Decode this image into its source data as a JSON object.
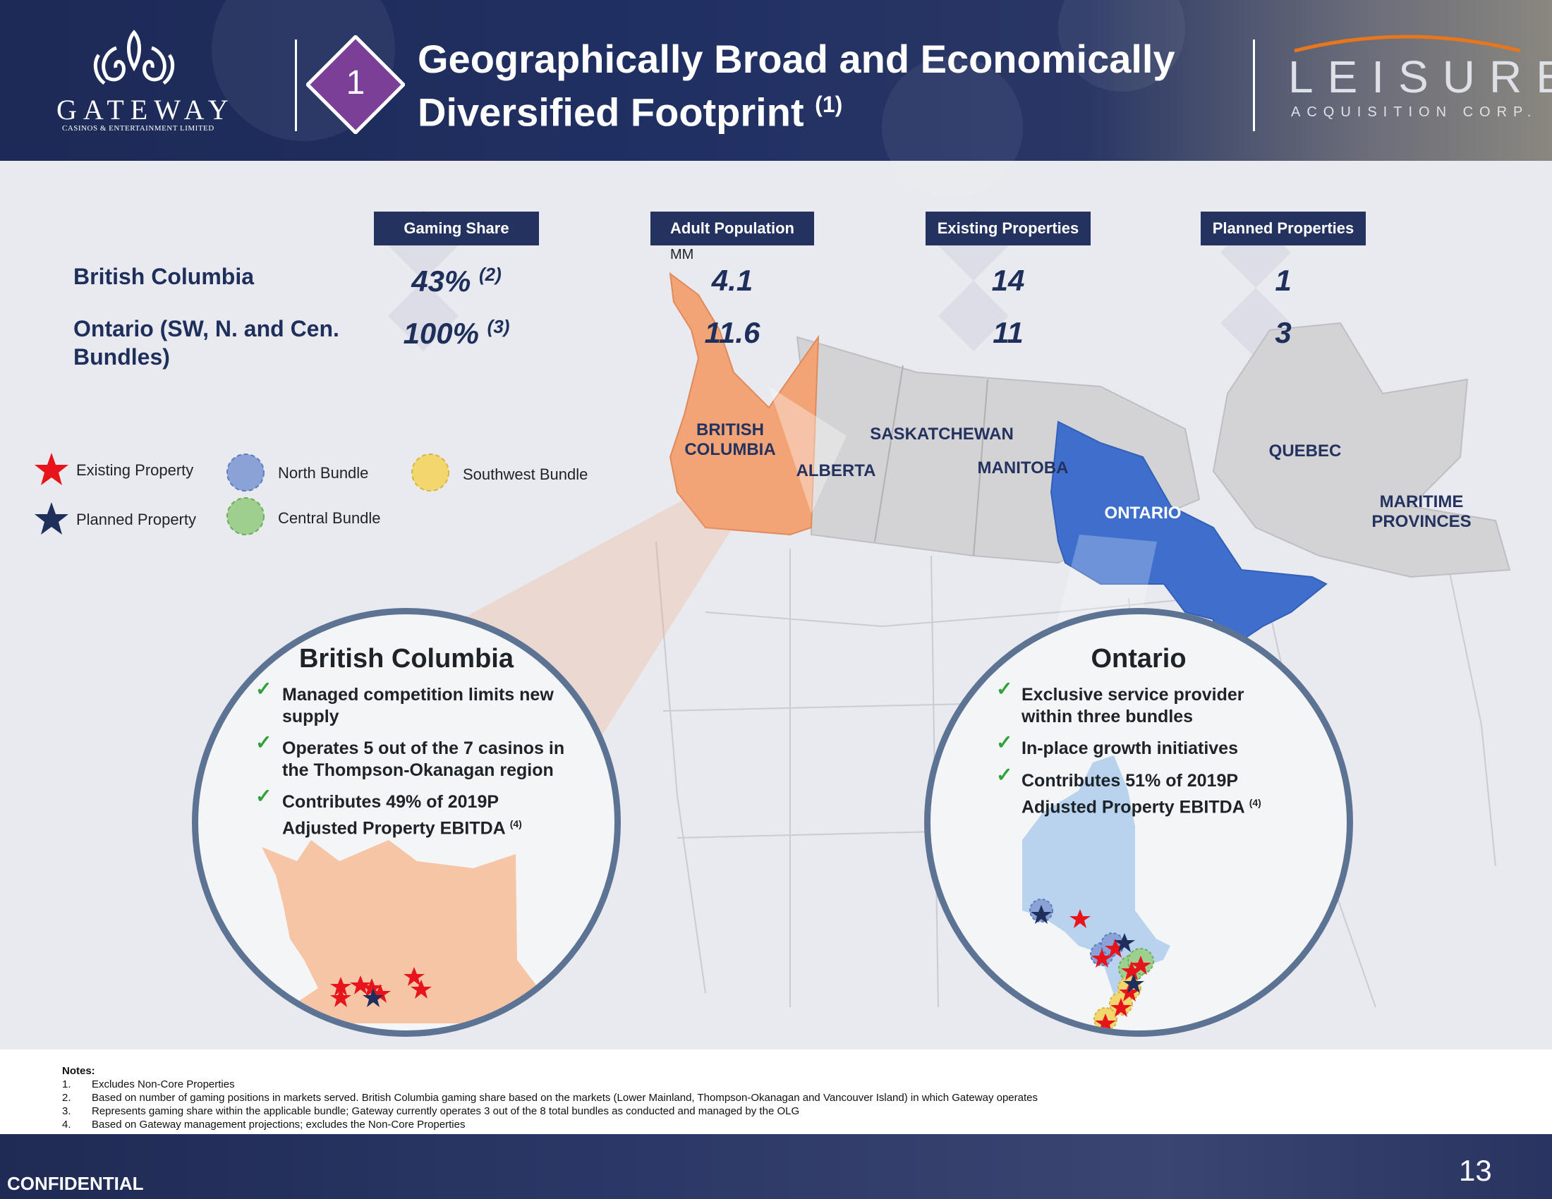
{
  "header": {
    "logo_word": "GATEWAY",
    "logo_sub": "Casinos & Entertainment Limited",
    "section_number": "1",
    "title_line1": "Geographically Broad and Economically",
    "title_line2": "Diversified Footprint",
    "title_sup": "(1)",
    "partner_word": "LEISURE",
    "partner_sub": "ACQUISITION CORP."
  },
  "table": {
    "headers": [
      "Gaming Share",
      "Adult Population",
      "Existing Properties",
      "Planned Properties"
    ],
    "unit_label": "MM",
    "rows": [
      {
        "province": "British Columbia",
        "gaming_share": "43%",
        "gaming_sup": "(2)",
        "population": "4.1",
        "existing": "14",
        "planned": "1"
      },
      {
        "province": "Ontario (SW, N. and Cen. Bundles)",
        "province_line1": "Ontario (SW, N. and Cen.",
        "province_line2": "Bundles)",
        "gaming_share": "100%",
        "gaming_sup": "(3)",
        "population": "11.6",
        "existing": "11",
        "planned": "3"
      }
    ]
  },
  "legend": {
    "existing": "Existing Property",
    "planned": "Planned Property",
    "north": "North Bundle",
    "central": "Central Bundle",
    "southwest": "Southwest Bundle",
    "colors": {
      "existing": "#e8141b",
      "planned": "#1f2f5c",
      "north": "#8aa2d6",
      "central": "#9fcf8e",
      "southwest": "#f2d66e"
    }
  },
  "map": {
    "labels": {
      "bc_line1": "BRITISH",
      "bc_line2": "COLUMBIA",
      "alberta": "ALBERTA",
      "saskatchewan": "SASKATCHEWAN",
      "manitoba": "MANITOBA",
      "ontario": "ONTARIO",
      "quebec": "QUEBEC",
      "maritime_line1": "MARITIME",
      "maritime_line2": "PROVINCES"
    },
    "colors": {
      "bc": "#f2a477",
      "ontario": "#3f6fcd",
      "other": "#d3d3d5"
    }
  },
  "bc_panel": {
    "title": "British Columbia",
    "bullets": [
      {
        "l1": "Managed competition limits new",
        "l2": "supply"
      },
      {
        "l1": "Operates 5 out of the 7 casinos in",
        "l2": "the Thompson-Okanagan region"
      },
      {
        "l1": "Contributes 49% of 2019P",
        "l2": "Adjusted Property EBITDA",
        "sup": "(4)"
      }
    ]
  },
  "on_panel": {
    "title": "Ontario",
    "bullets": [
      {
        "l1": "Exclusive service provider",
        "l2": "within three bundles"
      },
      {
        "l1": "In-place growth initiatives",
        "l2": ""
      },
      {
        "l1": "Contributes 51% of 2019P",
        "l2": "Adjusted Property EBITDA",
        "sup": "(4)"
      }
    ]
  },
  "notes": {
    "heading": "Notes:",
    "items": [
      {
        "num": "1.",
        "text": "Excludes Non-Core Properties"
      },
      {
        "num": "2.",
        "text": "Based on number of gaming positions in markets served. British Columbia gaming share based on the markets (Lower Mainland, Thompson-Okanagan and Vancouver Island) in which Gateway operates"
      },
      {
        "num": "3.",
        "text": "Represents gaming share within the applicable bundle; Gateway currently operates 3 out of the 8 total bundles as conducted and managed by the OLG"
      },
      {
        "num": "4.",
        "text": "Based on Gateway management projections; excludes the Non-Core Properties"
      }
    ]
  },
  "footer": {
    "confidential": "CONFIDENTIAL",
    "page_number": "13"
  }
}
